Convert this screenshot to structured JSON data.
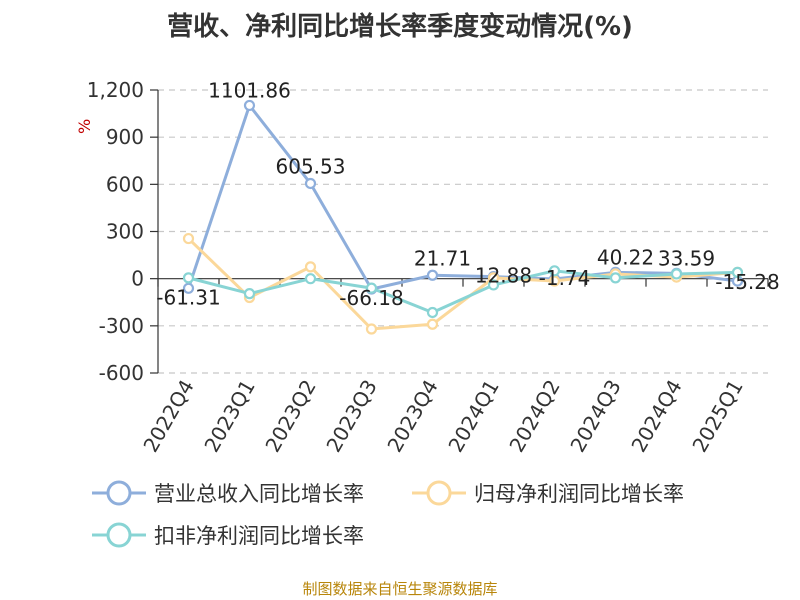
{
  "source": "制图数据来自恒生聚源数据库",
  "chart_data": {
    "type": "line",
    "title": "营收、净利同比增长率季度变动情况(%)",
    "ylabel": "%",
    "xlabel": "",
    "ylim": [
      -600,
      1200
    ],
    "yticks": [
      1200,
      900,
      600,
      300,
      0,
      -300,
      -600
    ],
    "ytick_labels": [
      "1,200",
      "900",
      "600",
      "300",
      "0",
      "-300",
      "-600"
    ],
    "categories": [
      "2022Q4",
      "2023Q1",
      "2023Q2",
      "2023Q3",
      "2023Q4",
      "2024Q1",
      "2024Q2",
      "2024Q3",
      "2024Q4",
      "2025Q1"
    ],
    "grid": true,
    "legend_position": "bottom",
    "series": [
      {
        "name": "营业总收入同比增长率",
        "color": "#8eaedb",
        "values": [
          -61.31,
          1101.86,
          605.53,
          -66.18,
          21.71,
          12.88,
          -1.74,
          40.22,
          33.59,
          -15.28
        ],
        "labels": [
          "-61.31",
          "1101.86",
          "605.53",
          "-66.18",
          "21.71",
          "12.88",
          "-1.74",
          "40.22",
          "33.59",
          "-15.28"
        ]
      },
      {
        "name": "归母净利润同比增长率",
        "color": "#fbd89a",
        "values": [
          255,
          -120,
          75,
          -320,
          -290,
          5,
          -15,
          30,
          10,
          40
        ]
      },
      {
        "name": "扣非净利润同比增长率",
        "color": "#88d4d4",
        "values": [
          5,
          -95,
          0,
          -60,
          -215,
          -40,
          50,
          5,
          30,
          40
        ]
      }
    ]
  }
}
